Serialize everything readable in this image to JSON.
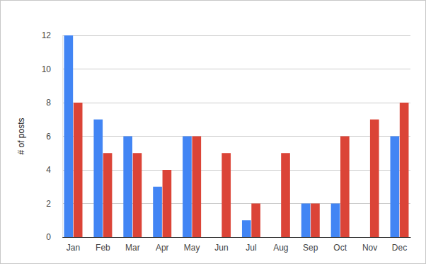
{
  "chart_data": {
    "type": "bar",
    "y_label": "# of posts",
    "categories": [
      "Jan",
      "Feb",
      "Mar",
      "Apr",
      "May",
      "Jun",
      "Jul",
      "Aug",
      "Sep",
      "Oct",
      "Nov",
      "Dec"
    ],
    "series": [
      {
        "color": "#4285f4",
        "values": [
          12,
          7,
          6,
          3,
          6,
          0,
          1,
          0,
          2,
          2,
          0,
          6
        ]
      },
      {
        "color": "#db4437",
        "values": [
          8,
          5,
          5,
          4,
          6,
          5,
          2,
          5,
          2,
          6,
          7,
          8
        ]
      }
    ],
    "ylim": [
      0,
      12
    ],
    "yticks": [
      0,
      2,
      4,
      6,
      8,
      10,
      12
    ],
    "grid": true
  }
}
